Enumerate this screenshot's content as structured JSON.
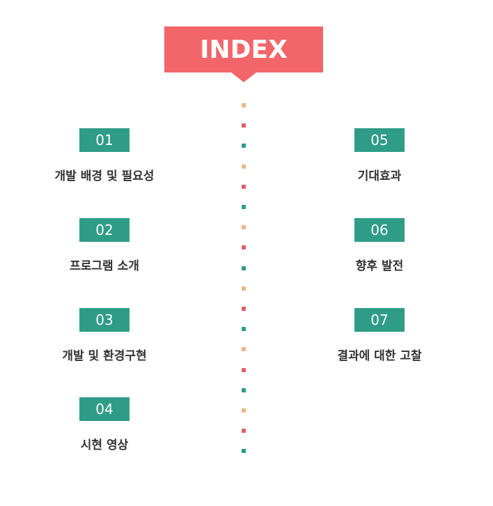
{
  "title": "INDEX",
  "colors": {
    "banner": "#f2666a",
    "teal": "#2e9c87",
    "dot_tan": "#e8b98a",
    "dot_red": "#e0606a",
    "dot_teal": "#2e9c87"
  },
  "items": [
    {
      "num": "01",
      "label": "개발 배경 및 필요성"
    },
    {
      "num": "02",
      "label": "프로그램 소개"
    },
    {
      "num": "03",
      "label": "개발 및 환경구현"
    },
    {
      "num": "04",
      "label": "시현 영상"
    },
    {
      "num": "05",
      "label": "기대효과"
    },
    {
      "num": "06",
      "label": "향후 발전"
    },
    {
      "num": "07",
      "label": "결과에 대한 고찰"
    }
  ]
}
